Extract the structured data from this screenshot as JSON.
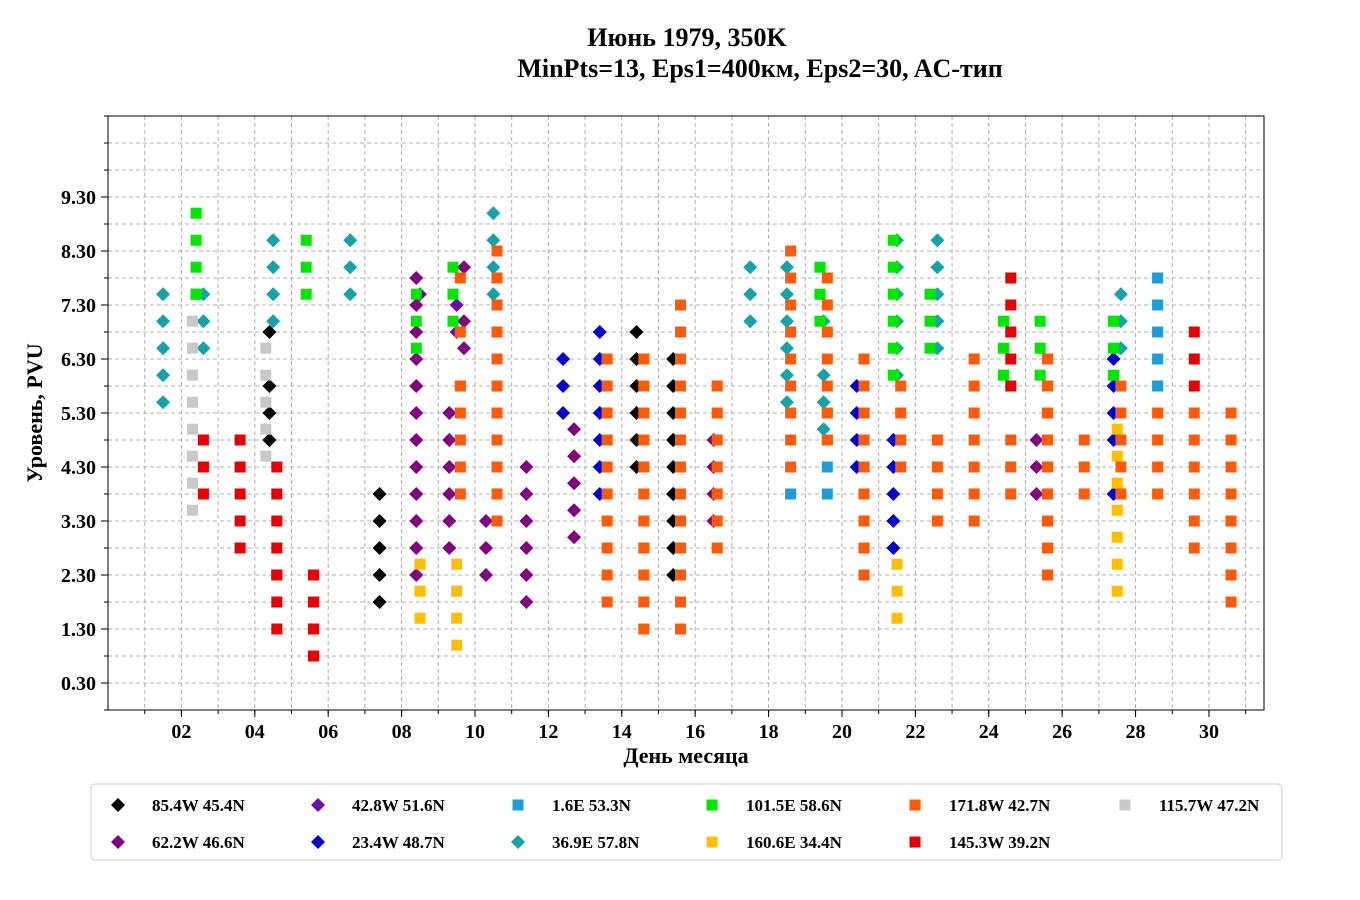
{
  "chart_data": {
    "type": "scatter",
    "title_line1": "Июнь 1979, 350K",
    "title_line2": "MinPts=13, Eps1=400км, Eps2=30, AC-тип",
    "xlabel": "День месяца",
    "ylabel": "Уровень, PVU",
    "xlim": [
      0,
      31.5
    ],
    "ylim": [
      -0.2,
      10.8
    ],
    "x_ticks": [
      2,
      4,
      6,
      8,
      10,
      12,
      14,
      16,
      18,
      20,
      22,
      24,
      26,
      28,
      30
    ],
    "x_tick_labels": [
      "02",
      "04",
      "06",
      "08",
      "10",
      "12",
      "14",
      "16",
      "18",
      "20",
      "22",
      "24",
      "26",
      "28",
      "30"
    ],
    "y_ticks": [
      0.3,
      1.3,
      2.3,
      3.3,
      4.3,
      5.3,
      6.3,
      7.3,
      8.3,
      9.3
    ],
    "y_tick_labels": [
      "0.30",
      "1.30",
      "2.30",
      "3.30",
      "4.30",
      "5.30",
      "6.30",
      "7.30",
      "8.30",
      "9.30"
    ],
    "grid": true,
    "legend_position": "bottom",
    "series": [
      {
        "name": "85.4W 45.4N",
        "color": "#000000",
        "marker": "diamond",
        "x": [
          4.4,
          4.4,
          4.4,
          4.4,
          4.4,
          7.4,
          7.4,
          7.4,
          7.4,
          7.4,
          14.4,
          14.4,
          14.4,
          14.4,
          14.4,
          14.4,
          15.4,
          15.4,
          15.4,
          15.4,
          15.4,
          15.4,
          15.4,
          15.4,
          15.4,
          15.4,
          15.4
        ],
        "y": [
          6.8,
          5.8,
          5.3,
          4.8,
          4.8,
          3.8,
          3.3,
          2.8,
          2.3,
          1.8,
          6.8,
          6.3,
          5.8,
          5.3,
          4.8,
          4.3,
          6.3,
          5.8,
          5.3,
          4.8,
          4.3,
          3.8,
          3.3,
          2.8,
          2.3,
          3.8,
          4.8
        ]
      },
      {
        "name": "62.2W 46.6N",
        "color": "#800080",
        "marker": "diamond",
        "x": [
          8.4,
          8.4,
          8.4,
          8.4,
          8.4,
          8.4,
          8.4,
          8.4,
          8.4,
          8.4,
          8.4,
          8.4,
          9.3,
          9.3,
          9.3,
          9.3,
          9.3,
          9.3,
          9.7,
          9.7,
          9.7,
          10.3,
          10.3,
          10.3,
          11.4,
          11.4,
          11.4,
          11.4,
          11.4,
          11.4,
          12.7,
          12.7,
          12.7,
          12.7,
          12.7,
          16.5,
          16.5,
          16.5,
          16.5,
          25.3,
          25.3,
          25.3
        ],
        "y": [
          7.8,
          7.3,
          6.8,
          6.3,
          5.8,
          5.3,
          4.8,
          4.3,
          3.8,
          3.3,
          2.8,
          2.3,
          5.3,
          4.8,
          4.3,
          3.8,
          3.3,
          2.8,
          8.0,
          7.0,
          6.5,
          3.3,
          2.8,
          2.3,
          4.3,
          3.8,
          3.3,
          2.8,
          2.3,
          1.8,
          5.0,
          4.5,
          4.0,
          3.5,
          3.0,
          4.8,
          4.3,
          3.8,
          3.3,
          4.8,
          4.3,
          3.8
        ]
      },
      {
        "name": "42.8W 51.6N",
        "color": "#6a0dad",
        "marker": "diamond",
        "x": [
          8.5,
          9.5,
          9.5
        ],
        "y": [
          7.5,
          7.3,
          6.8
        ]
      },
      {
        "name": "23.4W 48.7N",
        "color": "#0000cd",
        "marker": "diamond",
        "x": [
          12.4,
          12.4,
          12.4,
          13.4,
          13.4,
          13.4,
          13.4,
          13.4,
          13.4,
          13.4,
          20.4,
          20.4,
          20.4,
          20.4,
          21.4,
          21.4,
          21.4,
          21.4,
          21.4,
          27.4,
          27.4,
          27.4,
          27.4,
          27.4
        ],
        "y": [
          6.3,
          5.8,
          5.3,
          6.8,
          6.3,
          5.8,
          5.3,
          4.8,
          4.3,
          3.8,
          5.8,
          5.3,
          4.8,
          4.3,
          4.8,
          4.3,
          3.8,
          3.3,
          2.8,
          6.3,
          5.8,
          5.3,
          4.8,
          3.8
        ]
      },
      {
        "name": "1.6E 53.3N",
        "color": "#1f9bd7",
        "marker": "square",
        "x": [
          18.6,
          19.6,
          19.6,
          19.6,
          19.6,
          28.6,
          28.6,
          28.6,
          28.6,
          28.6
        ],
        "y": [
          3.8,
          5.3,
          4.8,
          4.3,
          3.8,
          7.8,
          7.3,
          6.8,
          6.3,
          5.8
        ]
      },
      {
        "name": "36.9E 57.8N",
        "color": "#17a2a8",
        "marker": "diamond",
        "x": [
          1.5,
          1.5,
          1.5,
          1.5,
          1.5,
          2.6,
          2.6,
          2.6,
          4.5,
          4.5,
          4.5,
          4.5,
          6.6,
          6.6,
          6.6,
          10.5,
          10.5,
          10.5,
          10.5,
          17.5,
          17.5,
          17.5,
          18.5,
          18.5,
          18.5,
          18.5,
          18.5,
          18.5,
          19.5,
          19.5,
          19.5,
          19.5,
          21.5,
          21.5,
          21.5,
          21.5,
          21.5,
          21.5,
          22.6,
          22.6,
          22.6,
          22.6,
          22.6,
          27.6,
          27.6,
          27.6
        ],
        "y": [
          7.5,
          7.0,
          6.5,
          6.0,
          5.5,
          7.5,
          7.0,
          6.5,
          8.5,
          8.0,
          7.5,
          7.0,
          8.5,
          8.0,
          7.5,
          9.0,
          8.5,
          8.0,
          7.5,
          8.0,
          7.5,
          7.0,
          8.0,
          7.5,
          7.0,
          6.5,
          6.0,
          5.5,
          7.0,
          6.0,
          5.5,
          5.0,
          8.5,
          8.0,
          7.5,
          7.0,
          6.5,
          6.0,
          8.5,
          8.0,
          7.5,
          7.0,
          6.5,
          7.5,
          7.0,
          6.5
        ]
      },
      {
        "name": "101.5E 58.6N",
        "color": "#00e600",
        "marker": "square",
        "x": [
          2.4,
          2.4,
          2.4,
          2.4,
          2.4,
          5.4,
          5.4,
          5.4,
          8.4,
          8.4,
          8.4,
          9.4,
          9.4,
          9.4,
          19.4,
          19.4,
          19.4,
          21.4,
          21.4,
          21.4,
          21.4,
          21.4,
          21.4,
          22.4,
          22.4,
          22.4,
          24.4,
          24.4,
          24.4,
          25.4,
          25.4,
          25.4,
          27.4,
          27.4,
          27.4
        ],
        "y": [
          9.0,
          8.5,
          8.0,
          7.5,
          7.5,
          8.5,
          8.0,
          7.5,
          7.5,
          7.0,
          6.5,
          8.0,
          7.5,
          7.0,
          8.0,
          7.5,
          7.0,
          8.5,
          8.0,
          7.5,
          7.0,
          6.5,
          6.0,
          7.5,
          7.0,
          6.5,
          7.0,
          6.5,
          6.0,
          7.0,
          6.5,
          6.0,
          7.0,
          6.5,
          6.0
        ]
      },
      {
        "name": "160.6E 34.4N",
        "color": "#ffbf00",
        "marker": "square",
        "x": [
          8.5,
          8.5,
          8.5,
          9.5,
          9.5,
          9.5,
          9.5,
          21.5,
          21.5,
          21.5,
          27.5,
          27.5,
          27.5,
          27.5,
          27.5,
          27.5,
          27.5
        ],
        "y": [
          2.5,
          2.0,
          1.5,
          2.5,
          2.0,
          1.5,
          1.0,
          2.5,
          2.0,
          1.5,
          5.0,
          4.5,
          4.0,
          3.5,
          3.0,
          2.5,
          2.0
        ]
      },
      {
        "name": "171.8W 42.7N",
        "color": "#ff5a0a",
        "marker": "square",
        "x": [
          9.6,
          9.6,
          9.6,
          9.6,
          9.6,
          9.6,
          9.6,
          9.6,
          10.6,
          10.6,
          10.6,
          10.6,
          10.6,
          10.6,
          10.6,
          10.6,
          10.6,
          10.6,
          10.6,
          13.6,
          13.6,
          13.6,
          13.6,
          13.6,
          13.6,
          13.6,
          13.6,
          13.6,
          13.6,
          14.6,
          14.6,
          14.6,
          14.6,
          14.6,
          14.6,
          14.6,
          14.6,
          14.6,
          14.6,
          14.6,
          15.6,
          15.6,
          15.6,
          15.6,
          15.6,
          15.6,
          15.6,
          15.6,
          15.6,
          15.6,
          15.6,
          15.6,
          15.6,
          16.6,
          16.6,
          16.6,
          16.6,
          16.6,
          16.6,
          16.6,
          18.6,
          18.6,
          18.6,
          18.6,
          18.6,
          18.6,
          18.6,
          18.6,
          18.6,
          19.6,
          19.6,
          19.6,
          19.6,
          19.6,
          19.6,
          19.6,
          20.6,
          20.6,
          20.6,
          20.6,
          20.6,
          20.6,
          20.6,
          20.6,
          20.6,
          21.6,
          21.6,
          21.6,
          21.6,
          22.6,
          22.6,
          22.6,
          22.6,
          23.6,
          23.6,
          23.6,
          23.6,
          23.6,
          23.6,
          23.6,
          24.6,
          24.6,
          24.6,
          25.6,
          25.6,
          25.6,
          25.6,
          25.6,
          25.6,
          25.6,
          25.6,
          25.6,
          26.6,
          26.6,
          26.6,
          27.6,
          27.6,
          27.6,
          27.6,
          27.6,
          28.6,
          28.6,
          28.6,
          28.6,
          29.6,
          29.6,
          29.6,
          29.6,
          29.6,
          29.6,
          30.6,
          30.6,
          30.6,
          30.6,
          30.6,
          30.6,
          30.6,
          30.6
        ],
        "y": [
          7.8,
          6.8,
          5.8,
          5.3,
          4.8,
          4.3,
          3.8,
          5.8,
          8.3,
          7.8,
          7.3,
          6.8,
          6.3,
          5.8,
          5.3,
          4.8,
          4.3,
          3.8,
          3.3,
          6.3,
          5.8,
          5.3,
          4.8,
          4.3,
          3.8,
          3.3,
          2.8,
          2.3,
          1.8,
          6.3,
          5.8,
          5.3,
          4.8,
          4.3,
          3.8,
          3.3,
          2.8,
          2.3,
          1.8,
          1.3,
          7.3,
          6.8,
          6.3,
          5.8,
          5.3,
          4.8,
          4.3,
          3.8,
          3.3,
          2.8,
          2.3,
          1.8,
          1.3,
          5.8,
          5.3,
          4.8,
          4.3,
          3.8,
          3.3,
          2.8,
          8.3,
          7.8,
          7.3,
          6.8,
          6.3,
          5.8,
          5.3,
          4.8,
          4.3,
          7.8,
          7.3,
          6.8,
          6.3,
          5.8,
          5.3,
          4.8,
          6.3,
          5.8,
          5.3,
          4.8,
          4.3,
          3.8,
          3.3,
          2.8,
          2.3,
          5.8,
          5.3,
          4.8,
          4.3,
          4.8,
          4.3,
          3.8,
          3.3,
          6.3,
          5.8,
          5.3,
          4.8,
          4.3,
          3.8,
          3.3,
          4.8,
          4.3,
          3.8,
          6.3,
          5.8,
          5.3,
          4.8,
          4.3,
          3.8,
          3.3,
          2.8,
          2.3,
          4.8,
          4.3,
          3.8,
          5.8,
          5.3,
          4.8,
          4.3,
          3.8,
          5.3,
          4.8,
          4.3,
          3.8,
          5.3,
          4.8,
          4.3,
          3.8,
          3.3,
          2.8,
          5.3,
          4.8,
          4.3,
          3.8,
          3.3,
          2.8,
          2.3,
          1.8
        ]
      },
      {
        "name": "145.3W 39.2N",
        "color": "#e60000",
        "marker": "square",
        "x": [
          2.6,
          2.6,
          2.6,
          3.6,
          3.6,
          3.6,
          3.6,
          3.6,
          4.6,
          4.6,
          4.6,
          4.6,
          4.6,
          4.6,
          4.6,
          4.6,
          5.6,
          5.6,
          5.6,
          5.6,
          24.6,
          24.6,
          24.6,
          24.6,
          24.6,
          29.6,
          29.6,
          29.6
        ],
        "y": [
          4.8,
          4.3,
          3.8,
          4.8,
          4.3,
          3.8,
          3.3,
          2.8,
          4.3,
          3.8,
          3.3,
          2.8,
          2.3,
          1.8,
          1.3,
          2.3,
          2.3,
          1.8,
          1.3,
          0.8,
          7.8,
          7.3,
          6.8,
          6.3,
          5.8,
          6.8,
          6.3,
          5.8
        ]
      },
      {
        "name": "115.7W 47.2N",
        "color": "#c8c8c8",
        "marker": "square",
        "x": [
          2.3,
          2.3,
          2.3,
          2.3,
          2.3,
          2.3,
          2.3,
          2.3,
          4.3,
          4.3,
          4.3,
          4.3,
          4.3
        ],
        "y": [
          7.0,
          6.5,
          6.0,
          5.5,
          5.0,
          4.5,
          4.0,
          3.5,
          6.5,
          6.0,
          5.5,
          5.0,
          4.5
        ]
      }
    ]
  }
}
